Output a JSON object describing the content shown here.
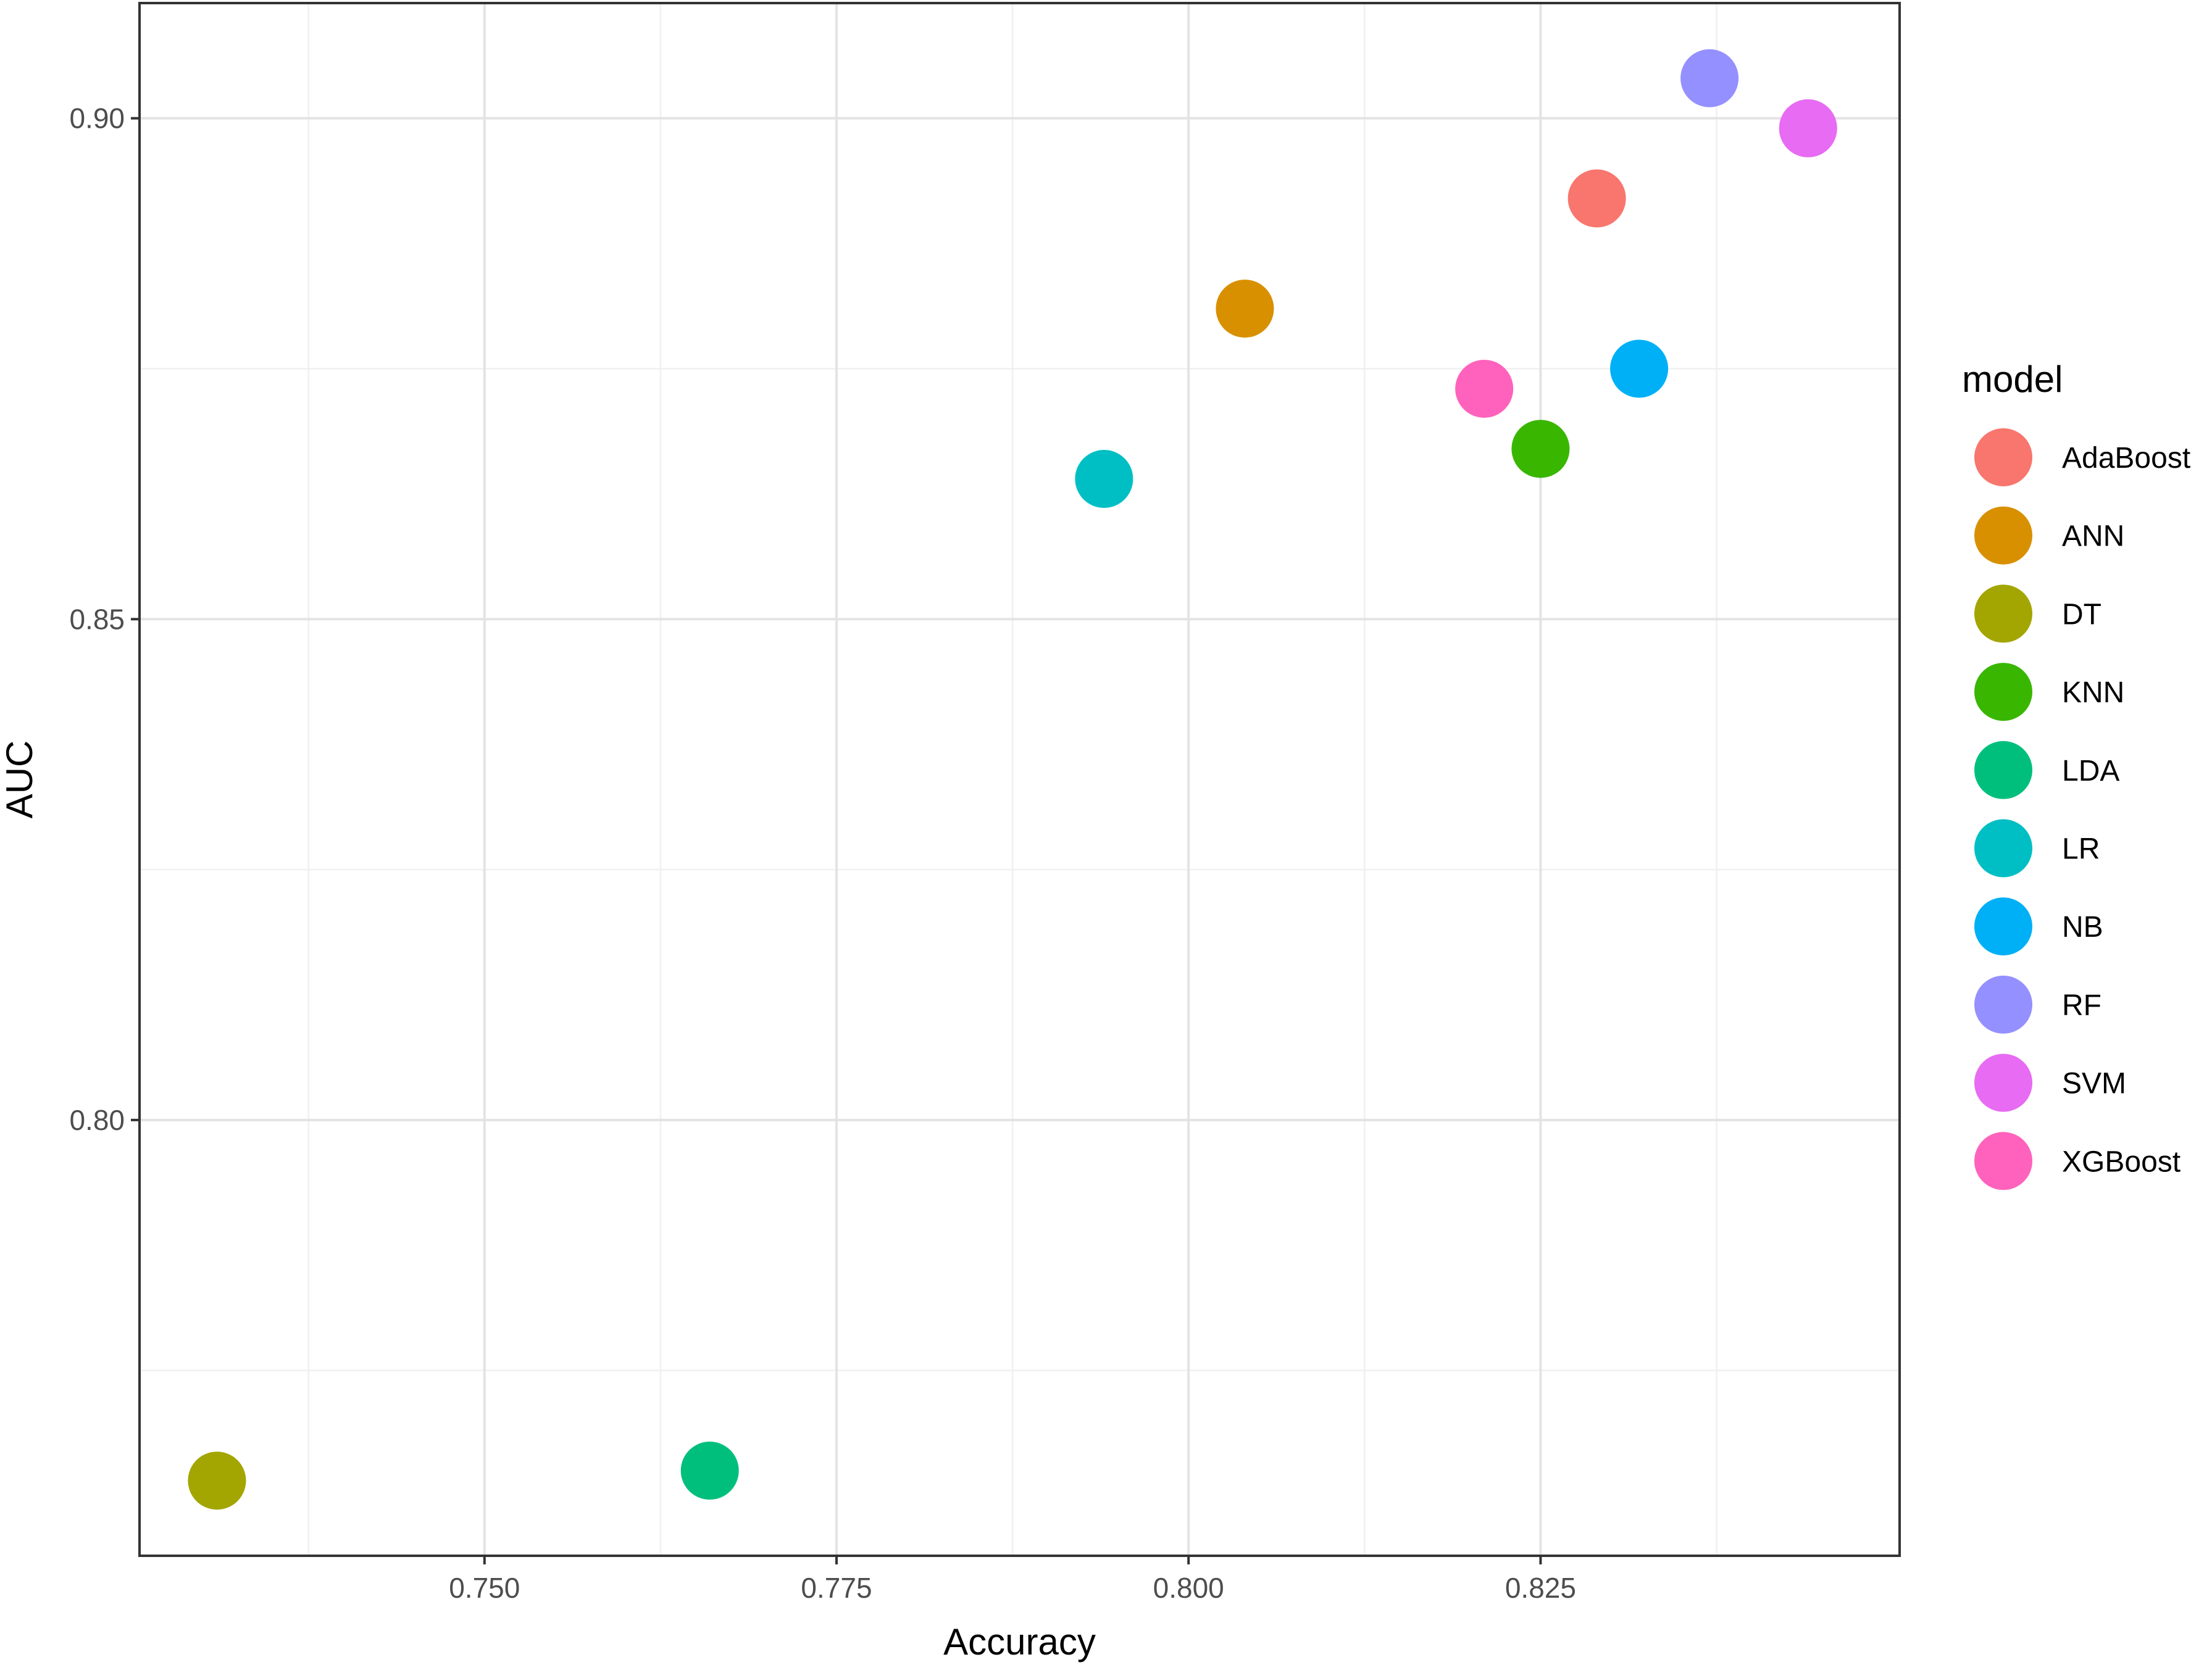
{
  "chart_data": {
    "type": "scatter",
    "title": "",
    "xlabel": "Accuracy",
    "ylabel": "AUC",
    "xlim": [
      0.7255,
      0.8505
    ],
    "ylim": [
      0.7565,
      0.9115
    ],
    "x_ticks": [
      0.75,
      0.775,
      0.8,
      0.825
    ],
    "x_tick_labels": [
      "0.750",
      "0.775",
      "0.800",
      "0.825"
    ],
    "y_ticks": [
      0.8,
      0.85,
      0.9
    ],
    "y_tick_labels": [
      "0.80",
      "0.85",
      "0.90"
    ],
    "grid": true,
    "legend": {
      "title": "model",
      "position": "right"
    },
    "series": [
      {
        "name": "AdaBoost",
        "color": "#F8766D",
        "x": [
          0.829
        ],
        "y": [
          0.892
        ]
      },
      {
        "name": "ANN",
        "color": "#D89000",
        "x": [
          0.804
        ],
        "y": [
          0.881
        ]
      },
      {
        "name": "DT",
        "color": "#A3A500",
        "x": [
          0.731
        ],
        "y": [
          0.764
        ]
      },
      {
        "name": "KNN",
        "color": "#39B600",
        "x": [
          0.825
        ],
        "y": [
          0.867
        ]
      },
      {
        "name": "LDA",
        "color": "#00BF7D",
        "x": [
          0.766
        ],
        "y": [
          0.765
        ]
      },
      {
        "name": "LR",
        "color": "#00BFC4",
        "x": [
          0.794
        ],
        "y": [
          0.864
        ]
      },
      {
        "name": "NB",
        "color": "#00B0F6",
        "x": [
          0.832
        ],
        "y": [
          0.875
        ]
      },
      {
        "name": "RF",
        "color": "#9590FF",
        "x": [
          0.837
        ],
        "y": [
          0.904
        ]
      },
      {
        "name": "SVM",
        "color": "#E76BF3",
        "x": [
          0.844
        ],
        "y": [
          0.899
        ]
      },
      {
        "name": "XGBoost",
        "color": "#FF62BC",
        "x": [
          0.821
        ],
        "y": [
          0.873
        ]
      }
    ]
  }
}
